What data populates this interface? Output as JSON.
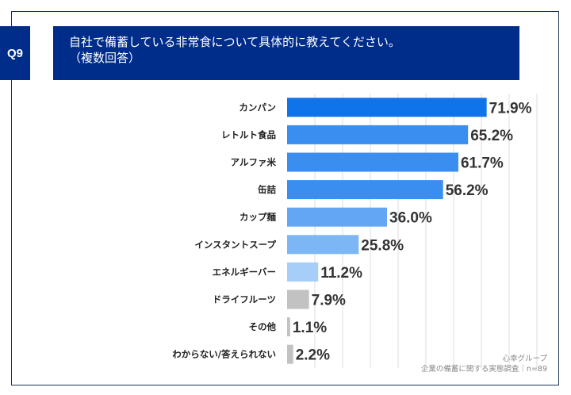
{
  "question": {
    "label": "Q9",
    "title_line1": "自社で備蓄している非常食について具体的に教えてください。",
    "title_line2": "（複数回答）"
  },
  "chart_data": {
    "type": "bar",
    "orientation": "horizontal",
    "categories": [
      "カンパン",
      "レトルト食品",
      "アルファ米",
      "缶詰",
      "カップ麺",
      "インスタントスープ",
      "エネルギーバー",
      "ドライフルーツ",
      "その他",
      "わからない/答えられない"
    ],
    "values": [
      71.9,
      65.2,
      61.7,
      56.2,
      36.0,
      25.8,
      11.2,
      7.9,
      1.1,
      2.2
    ],
    "labels": [
      "71.9%",
      "65.2%",
      "61.7%",
      "56.2%",
      "36.0%",
      "25.8%",
      "11.2%",
      "7.9%",
      "1.1%",
      "2.2%"
    ],
    "colors": [
      "#0f73ea",
      "#3a8ef0",
      "#3a8ef0",
      "#3a8ef0",
      "#63a6f3",
      "#7cb6f5",
      "#a6cef9",
      "#c2c2c2",
      "#c2c2c2",
      "#c2c2c2"
    ],
    "xlim": [
      0,
      100
    ],
    "grid": true
  },
  "source": {
    "line1": "心幸グループ",
    "line2": "企業の備蓄に関する実態調査｜n=89"
  }
}
